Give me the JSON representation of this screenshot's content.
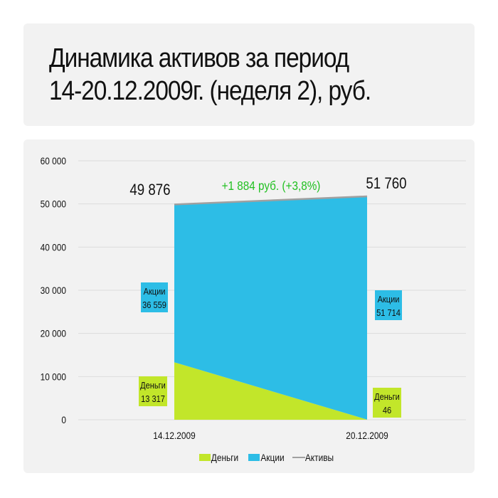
{
  "title_lines": [
    "Динамика активов за период",
    "14-20.12.2009г. (неделя 2), руб."
  ],
  "chart_data": {
    "type": "area",
    "stacked": true,
    "categories": [
      "14.12.2009",
      "20.12.2009"
    ],
    "series": [
      {
        "name": "Деньги",
        "values": [
          13317,
          46
        ],
        "color": "#c2e62a",
        "kind": "area",
        "data_labels": [
          "Деньги\n13 317",
          "Деньги\n46"
        ]
      },
      {
        "name": "Акции",
        "values": [
          36559,
          51714
        ],
        "color": "#2dbde6",
        "kind": "area",
        "data_labels": [
          "Акции\n36 559",
          "Акции\n51 714"
        ]
      },
      {
        "name": "Активы",
        "values": [
          49876,
          51760
        ],
        "color": "#a0a0a0",
        "kind": "line",
        "data_labels": [
          "49 876",
          "51 760"
        ]
      }
    ],
    "annotation": {
      "text": "+1 884 руб. (+3,8%)",
      "color": "#22c022"
    },
    "ylim": [
      0,
      60000
    ],
    "yticks": [
      "0",
      "10 000",
      "20 000",
      "30 000",
      "40 000",
      "50 000",
      "60 000"
    ],
    "grid": true,
    "legend": "bottom",
    "legend_entries": [
      "Деньги",
      "Акции",
      "Активы"
    ]
  }
}
